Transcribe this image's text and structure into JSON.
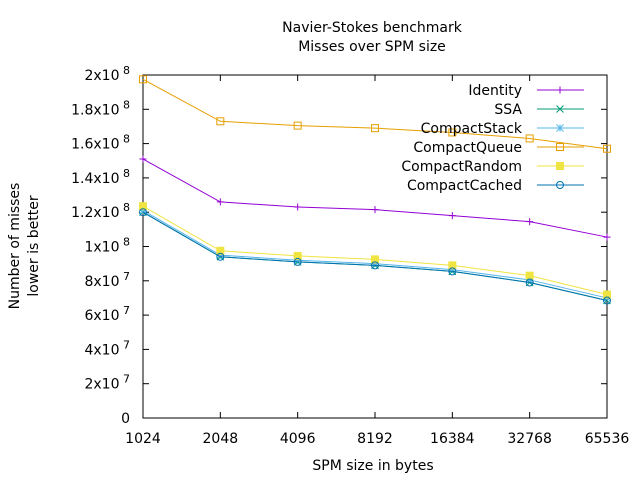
{
  "chart_data": {
    "type": "line",
    "title": "Navier-Stokes benchmark",
    "subtitle": "Misses over SPM size",
    "xlabel": "SPM size in bytes",
    "ylabel": [
      "Number of misses",
      "lower is better"
    ],
    "categories": [
      "1024",
      "2048",
      "4096",
      "8192",
      "16384",
      "32768",
      "65536"
    ],
    "x_scale": "log2",
    "ylim": [
      0,
      200000000
    ],
    "yticks": [
      {
        "value": 0,
        "base": "0",
        "exp": ""
      },
      {
        "value": 20000000,
        "base": "2x10",
        "exp": "7"
      },
      {
        "value": 40000000,
        "base": "4x10",
        "exp": "7"
      },
      {
        "value": 60000000,
        "base": "6x10",
        "exp": "7"
      },
      {
        "value": 80000000,
        "base": "8x10",
        "exp": "7"
      },
      {
        "value": 100000000,
        "base": "1x10",
        "exp": "8"
      },
      {
        "value": 120000000,
        "base": "1.2x10",
        "exp": "8"
      },
      {
        "value": 140000000,
        "base": "1.4x10",
        "exp": "8"
      },
      {
        "value": 160000000,
        "base": "1.6x10",
        "exp": "8"
      },
      {
        "value": 180000000,
        "base": "1.8x10",
        "exp": "8"
      },
      {
        "value": 200000000,
        "base": "2x10",
        "exp": "8"
      }
    ],
    "grid": false,
    "legend_position": "top-right",
    "series": [
      {
        "name": "Identity",
        "color": "#9400d3",
        "marker": "plus",
        "values": [
          151000000,
          126000000,
          123000000,
          121500000,
          118000000,
          114500000,
          105500000
        ]
      },
      {
        "name": "SSA",
        "color": "#009e73",
        "marker": "cross",
        "values": [
          120000000,
          94000000,
          91000000,
          89000000,
          85500000,
          79000000,
          68500000
        ]
      },
      {
        "name": "CompactStack",
        "color": "#56b4e9",
        "marker": "star",
        "values": [
          121000000,
          95000000,
          92000000,
          90000000,
          86500000,
          80500000,
          70000000
        ]
      },
      {
        "name": "CompactQueue",
        "color": "#e69f00",
        "marker": "square",
        "values": [
          197500000,
          173000000,
          170500000,
          169000000,
          166500000,
          163000000,
          157000000
        ]
      },
      {
        "name": "CompactRandom",
        "color": "#f0e442",
        "marker": "filled-square",
        "values": [
          123500000,
          97500000,
          94500000,
          92500000,
          89000000,
          83000000,
          72000000
        ]
      },
      {
        "name": "CompactCached",
        "color": "#0072b2",
        "marker": "circle",
        "values": [
          120000000,
          94000000,
          91000000,
          89000000,
          85500000,
          79000000,
          68500000
        ]
      }
    ]
  }
}
